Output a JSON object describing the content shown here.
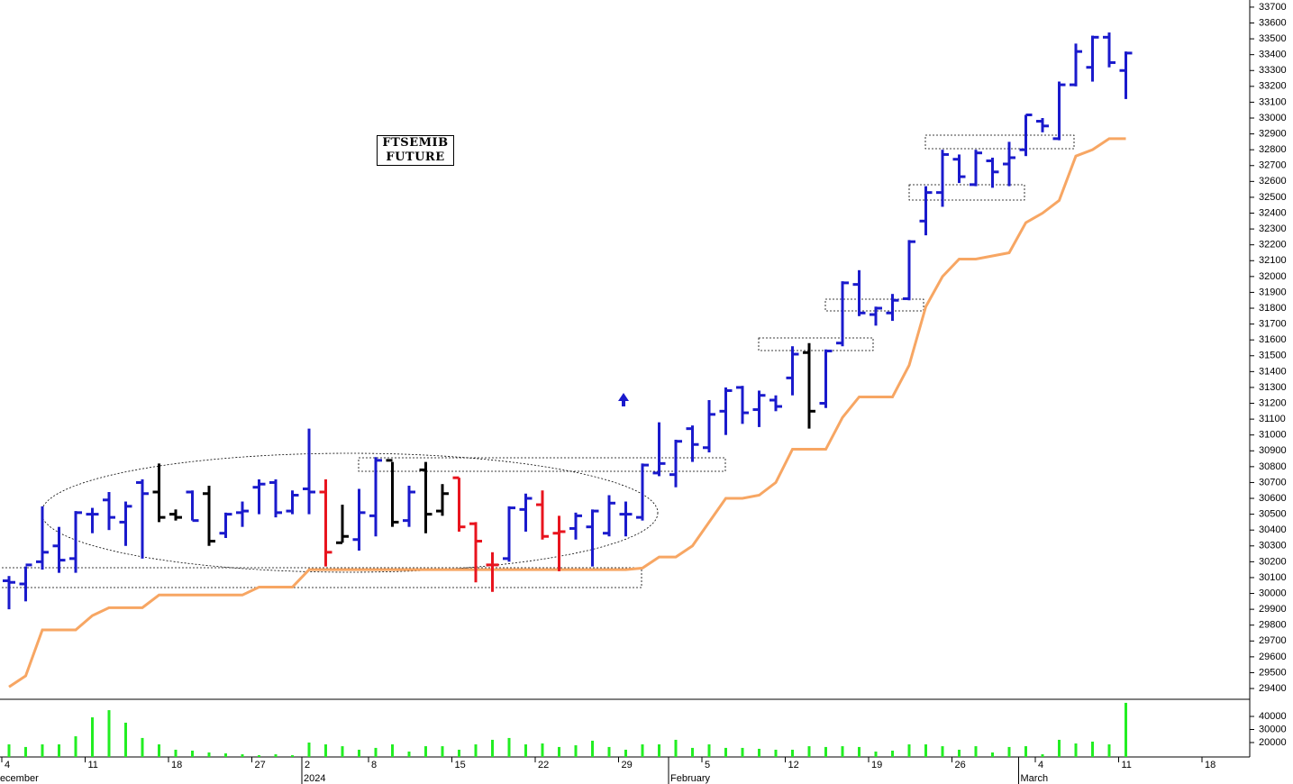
{
  "chart_data": {
    "type": "ohlc",
    "title": "FTSEMIB FUTURE",
    "categories": [
      "4",
      null,
      null,
      null,
      null,
      "11",
      null,
      null,
      null,
      null,
      "18",
      null,
      null,
      null,
      null,
      "27",
      null,
      null,
      "2",
      null,
      null,
      null,
      "8",
      null,
      null,
      null,
      null,
      "15",
      null,
      null,
      null,
      null,
      "22",
      null,
      null,
      null,
      null,
      "29",
      null,
      null,
      null,
      null,
      "5",
      null,
      null,
      null,
      null,
      "12",
      null,
      null,
      null,
      null,
      "19",
      null,
      null,
      null,
      null,
      "26",
      null,
      null,
      null,
      null,
      "4",
      null,
      null,
      null,
      null,
      "11",
      null,
      null,
      null,
      null,
      "18"
    ],
    "months": [
      "December",
      null,
      null,
      null,
      null,
      null,
      null,
      null,
      null,
      null,
      null,
      null,
      null,
      null,
      null,
      null,
      null,
      null,
      "2024",
      null,
      null,
      null,
      null,
      null,
      null,
      null,
      null,
      null,
      null,
      null,
      null,
      null,
      null,
      null,
      null,
      null,
      null,
      null,
      null,
      null,
      "February",
      null,
      null,
      null,
      null,
      null,
      null,
      null,
      null,
      null,
      null,
      null,
      null,
      null,
      null,
      null,
      null,
      null,
      null,
      null,
      null,
      "March",
      null,
      null,
      null,
      null,
      null,
      null,
      null,
      null,
      null,
      null,
      null
    ],
    "open": [
      30080,
      30060,
      30200,
      30300,
      30220,
      30500,
      30590,
      30450,
      30700,
      30640,
      30500,
      30640,
      30630,
      30380,
      30510,
      30670,
      30700,
      30520,
      30660,
      30640,
      30320,
      30340,
      30490,
      30840,
      30460,
      30780,
      30520,
      30730,
      30440,
      30180,
      30220,
      30530,
      30560,
      30380,
      30410,
      30420,
      30380,
      30500,
      30480,
      30760,
      30750,
      31040,
      30920,
      31150,
      31300,
      31160,
      31220,
      31360,
      31520,
      31200,
      31580,
      31950,
      31760,
      31770,
      31860,
      32350,
      32530,
      32740,
      32580,
      32730,
      32710,
      32800,
      32980,
      32870,
      33210,
      33320,
      33510,
      33300,
      null,
      null,
      null,
      null,
      null
    ],
    "high": [
      30110,
      30170,
      30550,
      30420,
      30520,
      30540,
      30640,
      30580,
      30720,
      30820,
      30530,
      30650,
      30680,
      30510,
      30580,
      30720,
      30720,
      30650,
      31040,
      30720,
      30560,
      30660,
      30860,
      30830,
      30680,
      30830,
      30690,
      30730,
      30450,
      30260,
      30550,
      30630,
      30650,
      30490,
      30510,
      30530,
      30620,
      30580,
      30820,
      31080,
      30970,
      31060,
      31220,
      31300,
      31310,
      31280,
      31250,
      31560,
      31580,
      31540,
      31970,
      32040,
      31810,
      31890,
      32230,
      32570,
      32800,
      32770,
      32800,
      32750,
      32850,
      33020,
      33000,
      33230,
      33470,
      33520,
      33540,
      33420,
      null,
      null,
      null,
      null,
      null
    ],
    "low": [
      29900,
      29950,
      30150,
      30130,
      30130,
      30380,
      30400,
      30300,
      30220,
      30450,
      30460,
      30460,
      30300,
      30350,
      30420,
      30500,
      30480,
      30500,
      30500,
      30170,
      30320,
      30270,
      30360,
      30420,
      30420,
      30380,
      30490,
      30390,
      30070,
      30010,
      30200,
      30390,
      30340,
      30140,
      30340,
      30170,
      30360,
      30360,
      30460,
      30740,
      30670,
      30830,
      30890,
      31000,
      31070,
      31050,
      31150,
      31250,
      31040,
      31170,
      31560,
      31750,
      31690,
      31720,
      31850,
      32260,
      32440,
      32590,
      32570,
      32560,
      32570,
      32760,
      32910,
      32860,
      33200,
      33230,
      33320,
      33120,
      null,
      null,
      null,
      null,
      null
    ],
    "close": [
      30070,
      30180,
      30260,
      30210,
      30510,
      30500,
      30480,
      30550,
      30630,
      30480,
      30480,
      30460,
      30330,
      30500,
      30520,
      30690,
      30510,
      30620,
      30640,
      30260,
      30360,
      30510,
      30840,
      30450,
      30640,
      30500,
      30630,
      30420,
      30330,
      30180,
      30540,
      30600,
      30360,
      30390,
      30490,
      30520,
      30570,
      30500,
      30810,
      30820,
      30960,
      30940,
      31130,
      31280,
      31140,
      31250,
      31180,
      31510,
      31150,
      31530,
      31960,
      31770,
      31800,
      31850,
      32220,
      32530,
      32770,
      32630,
      32780,
      32660,
      32750,
      33020,
      32950,
      33210,
      33420,
      33510,
      33350,
      33410,
      null,
      null,
      null,
      null,
      null
    ],
    "bar_colors": [
      "#1a1acc",
      "#1a1acc",
      "#1a1acc",
      "#1a1acc",
      "#1a1acc",
      "#1a1acc",
      "#1a1acc",
      "#1a1acc",
      "#1a1acc",
      "#000000",
      "#000000",
      "#1a1acc",
      "#000000",
      "#1a1acc",
      "#1a1acc",
      "#1a1acc",
      "#1a1acc",
      "#1a1acc",
      "#1a1acc",
      "#e8141e",
      "#000000",
      "#1a1acc",
      "#1a1acc",
      "#000000",
      "#1a1acc",
      "#000000",
      "#000000",
      "#e8141e",
      "#e8141e",
      "#e8141e",
      "#1a1acc",
      "#1a1acc",
      "#e8141e",
      "#e8141e",
      "#1a1acc",
      "#1a1acc",
      "#1a1acc",
      "#1a1acc",
      "#1a1acc",
      "#1a1acc",
      "#1a1acc",
      "#1a1acc",
      "#1a1acc",
      "#1a1acc",
      "#1a1acc",
      "#1a1acc",
      "#1a1acc",
      "#1a1acc",
      "#000000",
      "#1a1acc",
      "#1a1acc",
      "#1a1acc",
      "#1a1acc",
      "#1a1acc",
      "#1a1acc",
      "#1a1acc",
      "#1a1acc",
      "#1a1acc",
      "#1a1acc",
      "#1a1acc",
      "#1a1acc",
      "#1a1acc",
      "#1a1acc",
      "#1a1acc",
      "#1a1acc",
      "#1a1acc",
      "#1a1acc",
      "#1a1acc",
      null,
      null,
      null,
      null,
      null
    ],
    "overlay": {
      "color": "#f7a663",
      "values": [
        29410,
        29480,
        29770,
        29770,
        29770,
        29860,
        29910,
        29910,
        29910,
        29990,
        29990,
        29990,
        29990,
        29990,
        29990,
        30040,
        30040,
        30040,
        30150,
        30150,
        30150,
        30150,
        30150,
        30150,
        30150,
        30150,
        30150,
        30150,
        30150,
        30150,
        30150,
        30150,
        30150,
        30150,
        30150,
        30150,
        30150,
        30150,
        30160,
        30230,
        30230,
        30300,
        30450,
        30600,
        30600,
        30620,
        30700,
        30910,
        30910,
        30910,
        31110,
        31240,
        31240,
        31240,
        31440,
        31810,
        32000,
        32110,
        32110,
        32130,
        32150,
        32340,
        32400,
        32480,
        32760,
        32800,
        32870,
        32870,
        null,
        null,
        null,
        null,
        null
      ]
    },
    "volume": {
      "color": "#22ee22",
      "values": [
        18600,
        16600,
        18600,
        18600,
        24800,
        39300,
        44800,
        35200,
        23500,
        18600,
        14500,
        13800,
        12400,
        11700,
        11000,
        10300,
        11000,
        10300,
        20000,
        18600,
        17200,
        14500,
        15900,
        18600,
        13100,
        17200,
        17200,
        14500,
        18600,
        22100,
        23500,
        18600,
        19300,
        16600,
        17900,
        21400,
        16600,
        14500,
        18600,
        18600,
        22100,
        15900,
        18600,
        15900,
        15900,
        15200,
        14500,
        14500,
        17200,
        16600,
        17200,
        16600,
        13100,
        13800,
        18600,
        18600,
        17200,
        14500,
        17200,
        12400,
        16600,
        17200,
        11000,
        22100,
        19300,
        20700,
        18600,
        50400,
        null,
        null,
        null,
        null,
        null
      ]
    },
    "ylim": [
      29332,
      33745
    ],
    "yticks": [
      29400,
      29500,
      29600,
      29700,
      29800,
      29900,
      30000,
      30100,
      30200,
      30300,
      30400,
      30500,
      30600,
      30700,
      30800,
      30900,
      31000,
      31100,
      31200,
      31300,
      31400,
      31500,
      31600,
      31700,
      31800,
      31900,
      32000,
      32100,
      32200,
      32300,
      32400,
      32500,
      32600,
      32700,
      32800,
      32900,
      33000,
      33100,
      33200,
      33300,
      33400,
      33500,
      33600,
      33700
    ],
    "y2lim": [
      8960,
      53120
    ],
    "y2ticks": [
      20000,
      30000,
      40000
    ]
  }
}
